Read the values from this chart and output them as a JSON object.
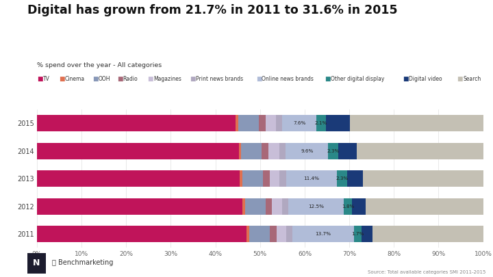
{
  "title": "Digital has grown from 21.7% in 2011 to 31.6% in 2015",
  "subtitle": "% spend over the year - All categories",
  "years": [
    "2015",
    "2014",
    "2013",
    "2012",
    "2011"
  ],
  "categories": [
    "TV",
    "Cinema",
    "OOH",
    "Radio",
    "Magazines",
    "Print news brands",
    "Online news brands",
    "Other digital display",
    "Digital video",
    "Search"
  ],
  "colors": [
    "#c0145a",
    "#e07050",
    "#8898b8",
    "#a86878",
    "#c8bed8",
    "#b0a8c0",
    "#b0bcd8",
    "#2a8888",
    "#1a3a78",
    "#c4c0b4"
  ],
  "data": {
    "2015": [
      44.5,
      0.6,
      4.6,
      1.5,
      2.4,
      1.4,
      7.6,
      2.1,
      5.4,
      29.9
    ],
    "2014": [
      45.2,
      0.6,
      4.6,
      1.5,
      2.4,
      1.4,
      9.6,
      2.3,
      4.1,
      28.3
    ],
    "2013": [
      45.5,
      0.6,
      4.6,
      1.5,
      2.2,
      1.4,
      11.4,
      2.3,
      3.5,
      27.0
    ],
    "2012": [
      46.0,
      0.6,
      4.6,
      1.5,
      2.2,
      1.4,
      12.5,
      1.8,
      3.0,
      26.4
    ],
    "2011": [
      47.0,
      0.6,
      4.6,
      1.5,
      2.2,
      1.4,
      13.7,
      1.7,
      2.5,
      24.8
    ]
  },
  "annotations": {
    "2015": {
      "online": "7.6%",
      "other": "2.1%"
    },
    "2014": {
      "online": "9.6%",
      "other": "2.3%"
    },
    "2013": {
      "online": "11.4%",
      "other": "2.3%"
    },
    "2012": {
      "online": "12.5%",
      "other": "1.8%"
    },
    "2011": {
      "online": "13.7%",
      "other": "1.7%"
    }
  },
  "source": "Source: Total available categories SMI 2011-2015",
  "logo_text": "示 Benchmarketing",
  "bg_color": "#ffffff",
  "bar_height": 0.6
}
